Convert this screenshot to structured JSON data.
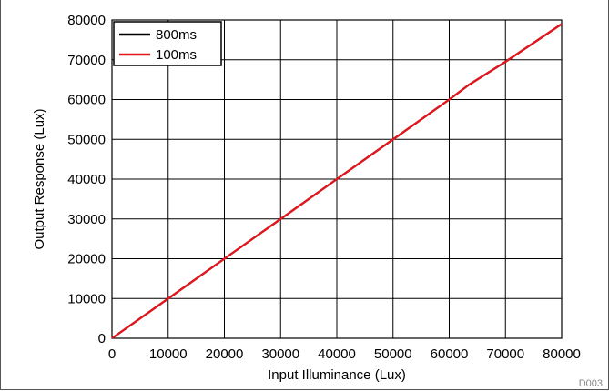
{
  "chart_data": {
    "type": "line",
    "xlabel": "Input Illuminance (Lux)",
    "ylabel": "Output Response (Lux)",
    "xlim": [
      0,
      80000
    ],
    "ylim": [
      0,
      80000
    ],
    "xticks": [
      0,
      10000,
      20000,
      30000,
      40000,
      50000,
      60000,
      70000,
      80000
    ],
    "yticks": [
      0,
      10000,
      20000,
      30000,
      40000,
      50000,
      60000,
      70000,
      80000
    ],
    "grid": true,
    "legend_position": "top-left",
    "series": [
      {
        "name": "800ms",
        "color": "#000000",
        "x": [
          0,
          10000,
          20000,
          30000,
          40000,
          50000,
          60000,
          63500,
          70000,
          80000
        ],
        "y": [
          0,
          10000,
          20000,
          30000,
          40000,
          50000,
          60000,
          63700,
          69500,
          79000
        ]
      },
      {
        "name": "100ms",
        "color": "#e8141c",
        "x": [
          0,
          10000,
          20000,
          30000,
          40000,
          50000,
          60000,
          63500,
          70000,
          80000
        ],
        "y": [
          0,
          10000,
          20000,
          30000,
          40000,
          50000,
          60000,
          63700,
          69500,
          79000
        ]
      }
    ],
    "figure_code": "D003"
  }
}
